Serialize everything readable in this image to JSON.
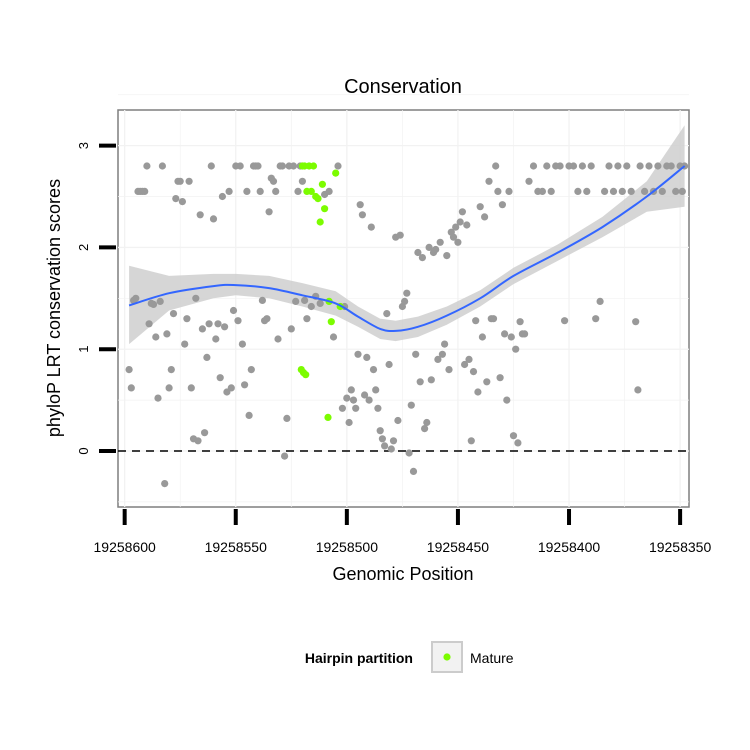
{
  "chart_data": {
    "type": "scatter",
    "title": "Conservation",
    "xlabel": "Genomic Position",
    "ylabel": "phyloP LRT conservation scores",
    "x_reversed": true,
    "xlim": [
      19258603,
      19258346
    ],
    "ylim": [
      -0.55,
      3.35
    ],
    "x_ticks": [
      19258600,
      19258550,
      19258500,
      19258450,
      19258400,
      19258350
    ],
    "y_ticks": [
      0,
      1,
      2,
      3
    ],
    "reference_line": {
      "y": 0,
      "style": "dashed"
    },
    "grid": true,
    "legend": {
      "title": "Hairpin partition",
      "position": "bottom",
      "entries": [
        "Mature"
      ]
    },
    "colors": {
      "other": "#999999",
      "mature": "#7cfc00",
      "smooth": "#3366ff",
      "ribbon": "#cccccc",
      "panel": "#ffffff",
      "border": "#7f7f7f"
    },
    "series": [
      {
        "partition": "other",
        "points": [
          [
            19258598,
            0.8
          ],
          [
            19258597,
            0.62
          ],
          [
            19258596,
            1.48
          ],
          [
            19258595,
            1.5
          ],
          [
            19258594,
            2.55
          ],
          [
            19258593,
            2.55
          ],
          [
            19258592,
            2.55
          ],
          [
            19258591,
            2.55
          ],
          [
            19258590,
            2.8
          ],
          [
            19258589,
            1.25
          ],
          [
            19258588,
            1.45
          ],
          [
            19258587,
            1.44
          ],
          [
            19258586,
            1.12
          ],
          [
            19258585,
            0.52
          ],
          [
            19258584,
            1.47
          ],
          [
            19258583,
            2.8
          ],
          [
            19258582,
            -0.32
          ],
          [
            19258581,
            1.15
          ],
          [
            19258580,
            0.62
          ],
          [
            19258579,
            0.8
          ],
          [
            19258578,
            1.35
          ],
          [
            19258577,
            2.48
          ],
          [
            19258576,
            2.65
          ],
          [
            19258575,
            2.65
          ],
          [
            19258574,
            2.45
          ],
          [
            19258573,
            1.05
          ],
          [
            19258572,
            1.3
          ],
          [
            19258571,
            2.65
          ],
          [
            19258570,
            0.62
          ],
          [
            19258569,
            0.12
          ],
          [
            19258568,
            1.5
          ],
          [
            19258567,
            0.1
          ],
          [
            19258566,
            2.32
          ],
          [
            19258565,
            1.2
          ],
          [
            19258564,
            0.18
          ],
          [
            19258563,
            0.92
          ],
          [
            19258562,
            1.25
          ],
          [
            19258561,
            2.8
          ],
          [
            19258560,
            2.28
          ],
          [
            19258559,
            1.1
          ],
          [
            19258558,
            1.25
          ],
          [
            19258557,
            0.72
          ],
          [
            19258556,
            2.5
          ],
          [
            19258555,
            1.22
          ],
          [
            19258554,
            0.58
          ],
          [
            19258553,
            2.55
          ],
          [
            19258552,
            0.62
          ],
          [
            19258551,
            1.38
          ],
          [
            19258550,
            2.8
          ],
          [
            19258549,
            1.28
          ],
          [
            19258548,
            2.8
          ],
          [
            19258547,
            1.05
          ],
          [
            19258546,
            0.65
          ],
          [
            19258545,
            2.55
          ],
          [
            19258544,
            0.35
          ],
          [
            19258543,
            0.8
          ],
          [
            19258542,
            2.8
          ],
          [
            19258541,
            2.8
          ],
          [
            19258540,
            2.8
          ],
          [
            19258539,
            2.55
          ],
          [
            19258538,
            1.48
          ],
          [
            19258537,
            1.28
          ],
          [
            19258536,
            1.3
          ],
          [
            19258535,
            2.35
          ],
          [
            19258534,
            2.68
          ],
          [
            19258533,
            2.65
          ],
          [
            19258532,
            2.55
          ],
          [
            19258531,
            1.1
          ],
          [
            19258530,
            2.8
          ],
          [
            19258529,
            2.8
          ],
          [
            19258528,
            -0.05
          ],
          [
            19258527,
            0.32
          ],
          [
            19258526,
            2.8
          ],
          [
            19258525,
            1.2
          ],
          [
            19258524,
            2.8
          ],
          [
            19258523,
            1.47
          ],
          [
            19258522,
            2.55
          ],
          [
            19258521,
            2.8
          ],
          [
            19258520,
            2.65
          ],
          [
            19258519,
            1.48
          ],
          [
            19258518,
            1.3
          ],
          [
            19258516,
            1.42
          ],
          [
            19258514,
            1.52
          ],
          [
            19258512,
            1.45
          ],
          [
            19258510,
            2.52
          ],
          [
            19258508,
            2.55
          ],
          [
            19258506,
            1.12
          ],
          [
            19258504,
            2.8
          ],
          [
            19258502,
            0.42
          ],
          [
            19258501,
            1.42
          ],
          [
            19258500,
            0.52
          ],
          [
            19258499,
            0.28
          ],
          [
            19258498,
            0.6
          ],
          [
            19258497,
            0.5
          ],
          [
            19258496,
            0.42
          ],
          [
            19258495,
            0.95
          ],
          [
            19258494,
            2.42
          ],
          [
            19258493,
            2.32
          ],
          [
            19258492,
            0.55
          ],
          [
            19258491,
            0.92
          ],
          [
            19258490,
            0.5
          ],
          [
            19258489,
            2.2
          ],
          [
            19258488,
            0.8
          ],
          [
            19258487,
            0.6
          ],
          [
            19258486,
            0.42
          ],
          [
            19258485,
            0.2
          ],
          [
            19258484,
            0.12
          ],
          [
            19258483,
            0.05
          ],
          [
            19258482,
            1.35
          ],
          [
            19258481,
            0.85
          ],
          [
            19258480,
            0.02
          ],
          [
            19258479,
            0.1
          ],
          [
            19258478,
            2.1
          ],
          [
            19258477,
            0.3
          ],
          [
            19258476,
            2.12
          ],
          [
            19258475,
            1.42
          ],
          [
            19258474,
            1.47
          ],
          [
            19258473,
            1.55
          ],
          [
            19258472,
            -0.02
          ],
          [
            19258471,
            0.45
          ],
          [
            19258470,
            -0.2
          ],
          [
            19258469,
            0.95
          ],
          [
            19258468,
            1.95
          ],
          [
            19258467,
            0.68
          ],
          [
            19258466,
            1.9
          ],
          [
            19258465,
            0.22
          ],
          [
            19258464,
            0.28
          ],
          [
            19258463,
            2
          ],
          [
            19258462,
            0.7
          ],
          [
            19258461,
            1.95
          ],
          [
            19258460,
            1.98
          ],
          [
            19258459,
            0.9
          ],
          [
            19258458,
            2.05
          ],
          [
            19258457,
            0.95
          ],
          [
            19258456,
            1.05
          ],
          [
            19258455,
            1.92
          ],
          [
            19258454,
            0.8
          ],
          [
            19258453,
            2.15
          ],
          [
            19258452,
            2.1
          ],
          [
            19258451,
            2.2
          ],
          [
            19258450,
            2.05
          ],
          [
            19258449,
            2.25
          ],
          [
            19258448,
            2.35
          ],
          [
            19258447,
            0.85
          ],
          [
            19258446,
            2.22
          ],
          [
            19258445,
            0.9
          ],
          [
            19258444,
            0.1
          ],
          [
            19258443,
            0.78
          ],
          [
            19258442,
            1.28
          ],
          [
            19258441,
            0.58
          ],
          [
            19258440,
            2.4
          ],
          [
            19258439,
            1.12
          ],
          [
            19258438,
            2.3
          ],
          [
            19258437,
            0.68
          ],
          [
            19258436,
            2.65
          ],
          [
            19258435,
            1.3
          ],
          [
            19258434,
            1.3
          ],
          [
            19258433,
            2.8
          ],
          [
            19258432,
            2.55
          ],
          [
            19258431,
            0.72
          ],
          [
            19258430,
            2.42
          ],
          [
            19258429,
            1.15
          ],
          [
            19258428,
            0.5
          ],
          [
            19258427,
            2.55
          ],
          [
            19258426,
            1.12
          ],
          [
            19258425,
            0.15
          ],
          [
            19258424,
            1
          ],
          [
            19258423,
            0.08
          ],
          [
            19258422,
            1.27
          ],
          [
            19258421,
            1.15
          ],
          [
            19258420,
            1.15
          ],
          [
            19258418,
            2.65
          ],
          [
            19258416,
            2.8
          ],
          [
            19258414,
            2.55
          ],
          [
            19258412,
            2.55
          ],
          [
            19258410,
            2.8
          ],
          [
            19258408,
            2.55
          ],
          [
            19258406,
            2.8
          ],
          [
            19258404,
            2.8
          ],
          [
            19258402,
            1.28
          ],
          [
            19258400,
            2.8
          ],
          [
            19258398,
            2.8
          ],
          [
            19258396,
            2.55
          ],
          [
            19258394,
            2.8
          ],
          [
            19258392,
            2.55
          ],
          [
            19258390,
            2.8
          ],
          [
            19258388,
            1.3
          ],
          [
            19258386,
            1.47
          ],
          [
            19258384,
            2.55
          ],
          [
            19258382,
            2.8
          ],
          [
            19258380,
            2.55
          ],
          [
            19258378,
            2.8
          ],
          [
            19258376,
            2.55
          ],
          [
            19258374,
            2.8
          ],
          [
            19258372,
            2.55
          ],
          [
            19258370,
            1.27
          ],
          [
            19258369,
            0.6
          ],
          [
            19258368,
            2.8
          ],
          [
            19258366,
            2.55
          ],
          [
            19258364,
            2.8
          ],
          [
            19258362,
            2.55
          ],
          [
            19258360,
            2.8
          ],
          [
            19258358,
            2.55
          ],
          [
            19258356,
            2.8
          ],
          [
            19258354,
            2.8
          ],
          [
            19258352,
            2.55
          ],
          [
            19258350,
            2.8
          ],
          [
            19258349,
            2.55
          ],
          [
            19258348,
            2.8
          ]
        ]
      },
      {
        "partition": "mature",
        "name": "Mature",
        "points": [
          [
            19258520,
            2.8
          ],
          [
            19258519,
            2.8
          ],
          [
            19258518,
            2.55
          ],
          [
            19258517,
            2.8
          ],
          [
            19258516,
            2.55
          ],
          [
            19258515,
            2.8
          ],
          [
            19258514,
            2.5
          ],
          [
            19258513,
            2.48
          ],
          [
            19258512,
            2.25
          ],
          [
            19258511,
            2.62
          ],
          [
            19258510,
            2.38
          ],
          [
            19258508,
            1.47
          ],
          [
            19258507,
            1.27
          ],
          [
            19258505,
            2.73
          ],
          [
            19258503,
            1.42
          ],
          [
            19258520.5,
            0.8
          ],
          [
            19258519.5,
            0.77
          ],
          [
            19258518.5,
            0.75
          ],
          [
            19258508.5,
            0.33
          ]
        ]
      }
    ],
    "smooth": {
      "x": [
        19258598,
        19258580,
        19258560,
        19258550,
        19258535,
        19258520,
        19258505,
        19258495,
        19258485,
        19258478,
        19258468,
        19258455,
        19258440,
        19258425,
        19258405,
        19258385,
        19258365,
        19258348
      ],
      "y": [
        1.43,
        1.55,
        1.62,
        1.63,
        1.6,
        1.53,
        1.45,
        1.32,
        1.2,
        1.18,
        1.22,
        1.33,
        1.5,
        1.72,
        1.95,
        2.2,
        2.5,
        2.8
      ],
      "ymin": [
        1.05,
        1.38,
        1.5,
        1.53,
        1.5,
        1.42,
        1.33,
        1.22,
        1.1,
        1.08,
        1.12,
        1.24,
        1.42,
        1.64,
        1.87,
        2.1,
        2.35,
        2.4
      ],
      "ymax": [
        1.82,
        1.72,
        1.74,
        1.74,
        1.72,
        1.65,
        1.57,
        1.42,
        1.3,
        1.28,
        1.32,
        1.42,
        1.58,
        1.8,
        2.03,
        2.3,
        2.65,
        3.2
      ]
    }
  }
}
